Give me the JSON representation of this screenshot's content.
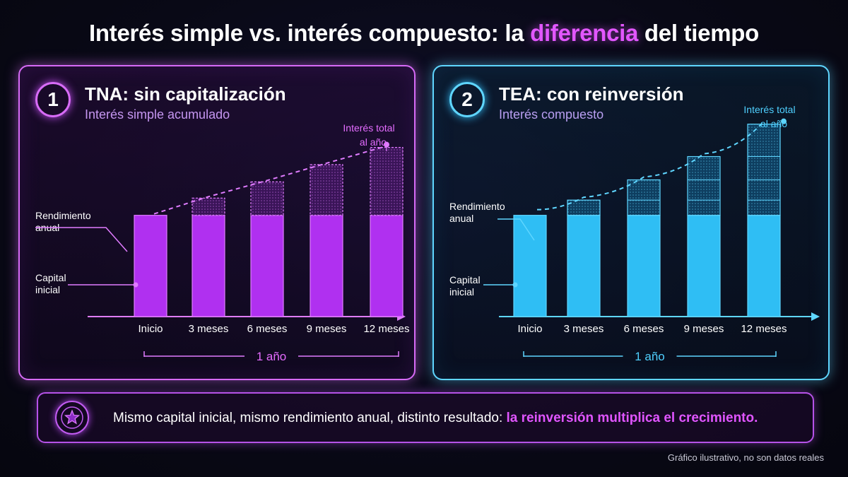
{
  "title": {
    "before": "Interés simple vs. interés compuesto: la ",
    "highlight": "diferencia",
    "after": " del tiempo"
  },
  "colors": {
    "simple": "#b030f0",
    "compound": "#2fbef4",
    "highlight": "#e257ff"
  },
  "panels": {
    "simple": {
      "number": "1",
      "title": "TNA: sin capitalización",
      "subtitle": "Interés simple acumulado"
    },
    "compound": {
      "number": "2",
      "title": "TEA: con reinversión",
      "subtitle": "Interés compuesto"
    }
  },
  "chart_data": [
    {
      "type": "bar",
      "title": "TNA: sin capitalización",
      "categories": [
        "Inicio",
        "3 meses",
        "6 meses",
        "9 meses",
        "12 meses"
      ],
      "series": [
        {
          "name": "Capital inicial",
          "values": [
            100,
            100,
            100,
            100,
            100
          ]
        },
        {
          "name": "Rendimiento anual",
          "values": [
            0,
            17,
            33,
            50,
            67
          ]
        }
      ],
      "annotations": [
        "Rendimiento anual",
        "Capital inicial",
        "Interés total al año"
      ],
      "span_label": "1 año",
      "ylim": [
        0,
        180
      ]
    },
    {
      "type": "bar",
      "title": "TEA: con reinversión",
      "categories": [
        "Inicio",
        "3 meses",
        "6 meses",
        "9 meses",
        "12 meses"
      ],
      "series": [
        {
          "name": "Capital inicial",
          "values": [
            100,
            100,
            100,
            100,
            100
          ]
        },
        {
          "name": "Rendimiento anual",
          "values": [
            0,
            15,
            35,
            58,
            90
          ]
        }
      ],
      "annotations": [
        "Rendimiento anual",
        "Capital inicial",
        "Interés total al año"
      ],
      "span_label": "1 año",
      "ylim": [
        0,
        180
      ]
    }
  ],
  "footer": {
    "text": "Mismo capital inicial, mismo rendimiento anual, distinto resultado: ",
    "highlight": "la reinversión multiplica el crecimiento."
  },
  "note": "Gráfico ilustrativo, no son datos reales"
}
